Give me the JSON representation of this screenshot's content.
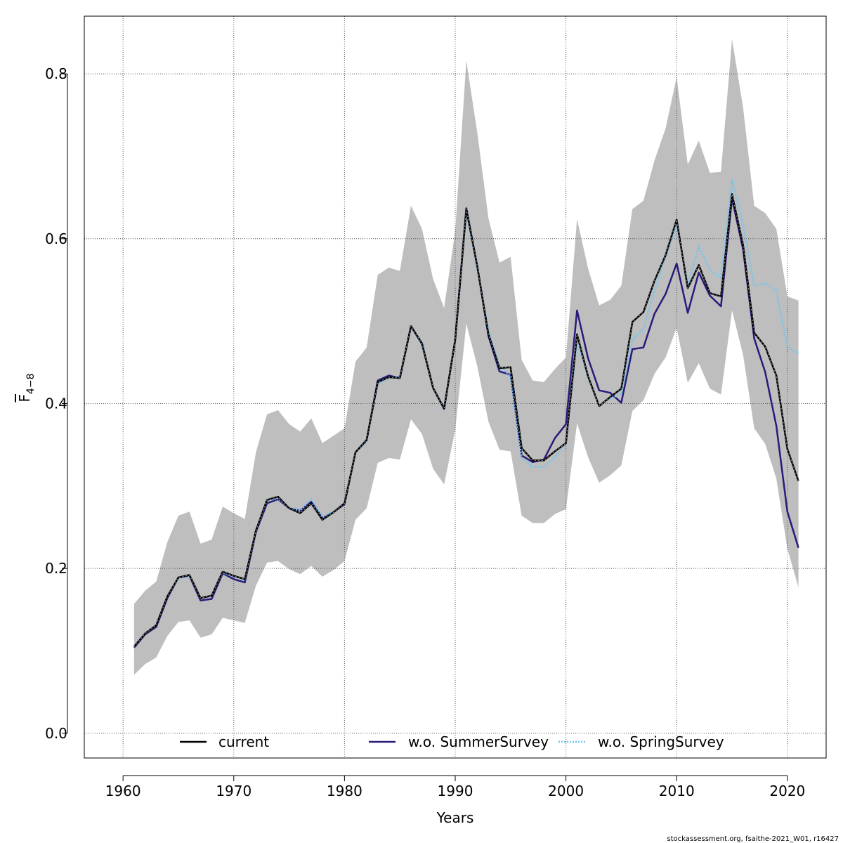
{
  "chart_data": {
    "type": "line",
    "title": "",
    "xlabel": "Years",
    "ylabel_main": "F",
    "ylabel_sub": "4−8",
    "xlim": [
      1956.5,
      2023.5
    ],
    "ylim": [
      -0.03,
      0.87
    ],
    "xticks": [
      1960,
      1970,
      1980,
      1990,
      2000,
      2010,
      2020
    ],
    "xtick_labels": [
      "1960",
      "1970",
      "1980",
      "1990",
      "2000",
      "2010",
      "2020"
    ],
    "yticks": [
      0.0,
      0.2,
      0.4,
      0.6,
      0.8
    ],
    "ytick_labels": [
      "0.0",
      "0.2",
      "0.4",
      "0.6",
      "0.8"
    ],
    "grid": true,
    "legend_position": "bottom",
    "x": [
      1961,
      1962,
      1963,
      1964,
      1965,
      1966,
      1967,
      1968,
      1969,
      1970,
      1971,
      1972,
      1973,
      1974,
      1975,
      1976,
      1977,
      1978,
      1979,
      1980,
      1981,
      1982,
      1983,
      1984,
      1985,
      1986,
      1987,
      1988,
      1989,
      1990,
      1991,
      1992,
      1993,
      1994,
      1995,
      1996,
      1997,
      1998,
      1999,
      2000,
      2001,
      2002,
      2003,
      2004,
      2005,
      2006,
      2007,
      2008,
      2009,
      2010,
      2011,
      2012,
      2013,
      2014,
      2015,
      2016,
      2017,
      2018,
      2019,
      2020,
      2021
    ],
    "confidence_band": {
      "color": "#bebebe",
      "upper": [
        0.157,
        0.173,
        0.184,
        0.232,
        0.264,
        0.269,
        0.23,
        0.235,
        0.275,
        0.267,
        0.26,
        0.341,
        0.387,
        0.392,
        0.375,
        0.366,
        0.382,
        0.352,
        0.361,
        0.37,
        0.451,
        0.468,
        0.556,
        0.565,
        0.561,
        0.64,
        0.612,
        0.551,
        0.516,
        0.61,
        0.816,
        0.728,
        0.625,
        0.571,
        0.578,
        0.453,
        0.428,
        0.426,
        0.442,
        0.456,
        0.624,
        0.564,
        0.519,
        0.526,
        0.543,
        0.636,
        0.646,
        0.695,
        0.734,
        0.796,
        0.69,
        0.719,
        0.68,
        0.681,
        0.842,
        0.759,
        0.64,
        0.631,
        0.612,
        0.53,
        0.525
      ],
      "lower": [
        0.071,
        0.084,
        0.092,
        0.118,
        0.135,
        0.137,
        0.116,
        0.12,
        0.14,
        0.137,
        0.134,
        0.179,
        0.207,
        0.209,
        0.199,
        0.193,
        0.203,
        0.19,
        0.198,
        0.209,
        0.259,
        0.273,
        0.328,
        0.334,
        0.332,
        0.381,
        0.363,
        0.321,
        0.302,
        0.368,
        0.497,
        0.445,
        0.378,
        0.344,
        0.342,
        0.264,
        0.255,
        0.255,
        0.266,
        0.272,
        0.376,
        0.335,
        0.304,
        0.313,
        0.325,
        0.391,
        0.404,
        0.436,
        0.456,
        0.492,
        0.425,
        0.449,
        0.418,
        0.411,
        0.513,
        0.459,
        0.37,
        0.351,
        0.309,
        0.224,
        0.177
      ]
    },
    "series": [
      {
        "name": "current",
        "color": "#000000",
        "style": "solid",
        "values": [
          0.105,
          0.121,
          0.131,
          0.166,
          0.189,
          0.192,
          0.164,
          0.167,
          0.196,
          0.191,
          0.187,
          0.246,
          0.283,
          0.287,
          0.273,
          0.267,
          0.279,
          0.259,
          0.268,
          0.279,
          0.341,
          0.356,
          0.426,
          0.432,
          0.431,
          0.494,
          0.473,
          0.419,
          0.394,
          0.477,
          0.636,
          0.566,
          0.484,
          0.443,
          0.444,
          0.346,
          0.331,
          0.331,
          0.342,
          0.352,
          0.484,
          0.433,
          0.397,
          0.408,
          0.418,
          0.499,
          0.511,
          0.549,
          0.58,
          0.623,
          0.54,
          0.568,
          0.534,
          0.53,
          0.654,
          0.592,
          0.486,
          0.469,
          0.434,
          0.345,
          0.306
        ]
      },
      {
        "name": "w.o. SummerSurvey",
        "color": "#2b1a7a",
        "style": "solid",
        "values": [
          0.104,
          0.12,
          0.129,
          0.164,
          0.189,
          0.191,
          0.161,
          0.163,
          0.194,
          0.187,
          0.183,
          0.244,
          0.279,
          0.284,
          0.273,
          0.27,
          0.281,
          0.261,
          0.268,
          0.278,
          0.341,
          0.355,
          0.428,
          0.434,
          0.431,
          0.494,
          0.472,
          0.419,
          0.393,
          0.478,
          0.637,
          0.566,
          0.482,
          0.439,
          0.435,
          0.337,
          0.329,
          0.332,
          0.358,
          0.375,
          0.513,
          0.455,
          0.416,
          0.413,
          0.401,
          0.466,
          0.468,
          0.509,
          0.533,
          0.57,
          0.51,
          0.559,
          0.531,
          0.518,
          0.649,
          0.587,
          0.479,
          0.438,
          0.373,
          0.269,
          0.225
        ]
      },
      {
        "name": "w.o. SpringSurvey",
        "color": "#6ec6f0",
        "style": "dotted",
        "values": [
          0.105,
          0.121,
          0.131,
          0.166,
          0.188,
          0.191,
          0.164,
          0.167,
          0.195,
          0.19,
          0.186,
          0.245,
          0.282,
          0.285,
          0.273,
          0.27,
          0.284,
          0.262,
          0.269,
          0.279,
          0.341,
          0.355,
          0.424,
          0.431,
          0.433,
          0.494,
          0.471,
          0.419,
          0.393,
          0.477,
          0.632,
          0.563,
          0.489,
          0.446,
          0.433,
          0.334,
          0.323,
          0.323,
          0.335,
          0.35,
          0.475,
          0.431,
          0.397,
          0.406,
          0.412,
          0.477,
          0.491,
          0.537,
          0.578,
          0.617,
          0.545,
          0.591,
          0.562,
          0.553,
          0.671,
          0.616,
          0.543,
          0.546,
          0.537,
          0.469,
          0.461
        ]
      }
    ]
  },
  "footer": {
    "credit": "stockassessment.org, fsaithe-2021_W01, r16427"
  }
}
